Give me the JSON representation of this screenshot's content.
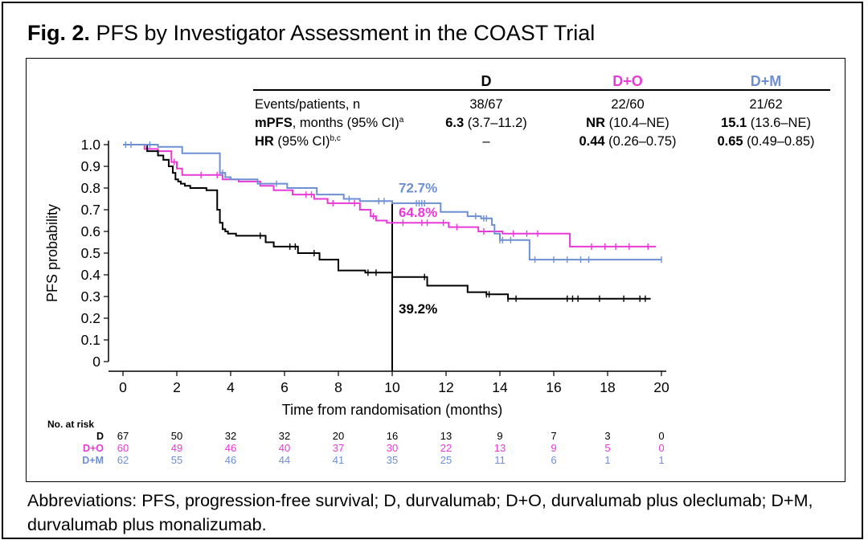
{
  "figure": {
    "title_bold": "Fig. 2.",
    "title_rest": " PFS by Investigator Assessment in the COAST Trial",
    "footnote": "Abbreviations: PFS, progression-free survival; D, durvalumab; D+O, durvalumab plus oleclumab; D+M, durvalumab plus monalizumab."
  },
  "colors": {
    "D": "#000000",
    "D+O": "#e83ad6",
    "D+M": "#6f8fd3"
  },
  "summary_table": {
    "headers": [
      "D",
      "D+O",
      "D+M"
    ],
    "rows": [
      {
        "label": "Events/patients, n",
        "label_bold": "",
        "label_sup": "",
        "cells": [
          {
            "bold": "",
            "rest": "38/67"
          },
          {
            "bold": "",
            "rest": "22/60"
          },
          {
            "bold": "",
            "rest": "21/62"
          }
        ]
      },
      {
        "label": ", months (95% CI)",
        "label_bold": "mPFS",
        "label_sup": "a",
        "cells": [
          {
            "bold": "6.3",
            "rest": " (3.7–11.2)"
          },
          {
            "bold": "NR",
            "rest": " (10.4–NE)"
          },
          {
            "bold": "15.1",
            "rest": " (13.6–NE)"
          }
        ]
      },
      {
        "label": " (95% CI)",
        "label_bold": "HR",
        "label_sup": "b,c",
        "cells": [
          {
            "bold": "",
            "rest": "–"
          },
          {
            "bold": "0.44",
            "rest": " (0.26–0.75)"
          },
          {
            "bold": "0.65",
            "rest": " (0.49–0.85)"
          }
        ]
      }
    ]
  },
  "chart_data": {
    "type": "line",
    "step": true,
    "xlabel": "Time from randomisation (months)",
    "ylabel": "PFS probability",
    "xlim": [
      0,
      20
    ],
    "ylim": [
      0,
      1.0
    ],
    "xticks": [
      0,
      2,
      4,
      6,
      8,
      10,
      12,
      14,
      16,
      18,
      20
    ],
    "yticks": [
      0,
      0.1,
      0.2,
      0.3,
      0.4,
      0.5,
      0.6,
      0.7,
      0.8,
      0.9,
      1.0
    ],
    "ytick_labels": [
      "0",
      "0.1",
      "0.2",
      "0.3",
      "0.4",
      "0.5",
      "0.6",
      "0.7",
      "0.8",
      "0.9",
      "1.0"
    ],
    "reference_line": {
      "x": 10
    },
    "annotations": [
      {
        "text": "72.7%",
        "series": "D+M",
        "x": 10,
        "y": 0.727
      },
      {
        "text": "64.8%",
        "series": "D+O",
        "x": 10,
        "y": 0.648
      },
      {
        "text": "39.2%",
        "series": "D",
        "x": 10,
        "y": 0.392
      }
    ],
    "series": [
      {
        "name": "D",
        "x": [
          0,
          0.9,
          1.3,
          1.5,
          1.7,
          1.85,
          1.95,
          2.05,
          2.15,
          2.3,
          2.5,
          3.1,
          3.5,
          3.6,
          3.7,
          3.8,
          3.9,
          4.2,
          5.3,
          5.6,
          6.5,
          7.3,
          8.0,
          9.0,
          10.0,
          11.3,
          12.8,
          13.5,
          14.3,
          19.6
        ],
        "y": [
          1.0,
          0.97,
          0.95,
          0.93,
          0.9,
          0.87,
          0.84,
          0.83,
          0.82,
          0.81,
          0.8,
          0.79,
          0.7,
          0.64,
          0.61,
          0.6,
          0.59,
          0.58,
          0.55,
          0.53,
          0.5,
          0.47,
          0.42,
          0.41,
          0.39,
          0.35,
          0.32,
          0.31,
          0.29,
          0.29
        ],
        "censor_x": [
          5.1,
          6.2,
          6.4,
          7.1,
          9.1,
          9.4,
          11.2,
          13.5,
          13.6,
          14.3,
          14.6,
          16.5,
          16.7,
          16.9,
          17.7,
          18.6,
          19.2,
          19.4
        ]
      },
      {
        "name": "D+O",
        "x": [
          0,
          0.8,
          1.3,
          1.8,
          2.0,
          2.2,
          3.7,
          4.3,
          5.1,
          5.6,
          6.3,
          7.1,
          7.6,
          8.8,
          9.2,
          9.4,
          9.8,
          11.0,
          12.1,
          13.2,
          14.1,
          16.6,
          19.8
        ],
        "y": [
          1.0,
          0.98,
          0.97,
          0.92,
          0.89,
          0.86,
          0.84,
          0.83,
          0.81,
          0.79,
          0.77,
          0.75,
          0.73,
          0.7,
          0.67,
          0.65,
          0.64,
          0.64,
          0.62,
          0.6,
          0.59,
          0.53,
          0.53
        ],
        "censor_x": [
          1.9,
          2.9,
          3.5,
          6.8,
          7.0,
          7.8,
          8.6,
          9.3,
          10.4,
          11.1,
          11.3,
          11.9,
          12.4,
          13.4,
          14.5,
          15.0,
          15.4,
          17.4,
          17.9,
          18.3,
          18.8,
          19.5
        ]
      },
      {
        "name": "D+M",
        "x": [
          0,
          1.3,
          2.2,
          3.6,
          3.8,
          4.0,
          5.0,
          6.1,
          7.2,
          8.2,
          8.8,
          10.0,
          11.8,
          12.8,
          13.3,
          13.7,
          13.8,
          14.0,
          15.1,
          20.0
        ],
        "y": [
          1.0,
          0.99,
          0.96,
          0.87,
          0.85,
          0.84,
          0.82,
          0.8,
          0.77,
          0.75,
          0.74,
          0.73,
          0.69,
          0.67,
          0.66,
          0.63,
          0.59,
          0.56,
          0.47,
          0.47
        ],
        "censor_x": [
          0.1,
          0.3,
          1.0,
          3.6,
          3.7,
          5.7,
          8.4,
          9.5,
          9.7,
          10.9,
          11.0,
          11.1,
          11.2,
          13.1,
          13.4,
          13.5,
          14.0,
          14.1,
          14.4,
          15.3,
          16.0,
          16.5,
          17.0,
          17.3,
          20.0
        ]
      }
    ],
    "risk_table": {
      "title": "No. at risk",
      "rows": [
        {
          "name": "D",
          "values": [
            67,
            50,
            32,
            32,
            20,
            16,
            13,
            9,
            7,
            3,
            0
          ]
        },
        {
          "name": "D+O",
          "values": [
            60,
            49,
            46,
            40,
            37,
            30,
            22,
            13,
            9,
            5,
            0
          ]
        },
        {
          "name": "D+M",
          "values": [
            62,
            55,
            46,
            44,
            41,
            35,
            25,
            11,
            6,
            1,
            1
          ]
        }
      ]
    }
  }
}
